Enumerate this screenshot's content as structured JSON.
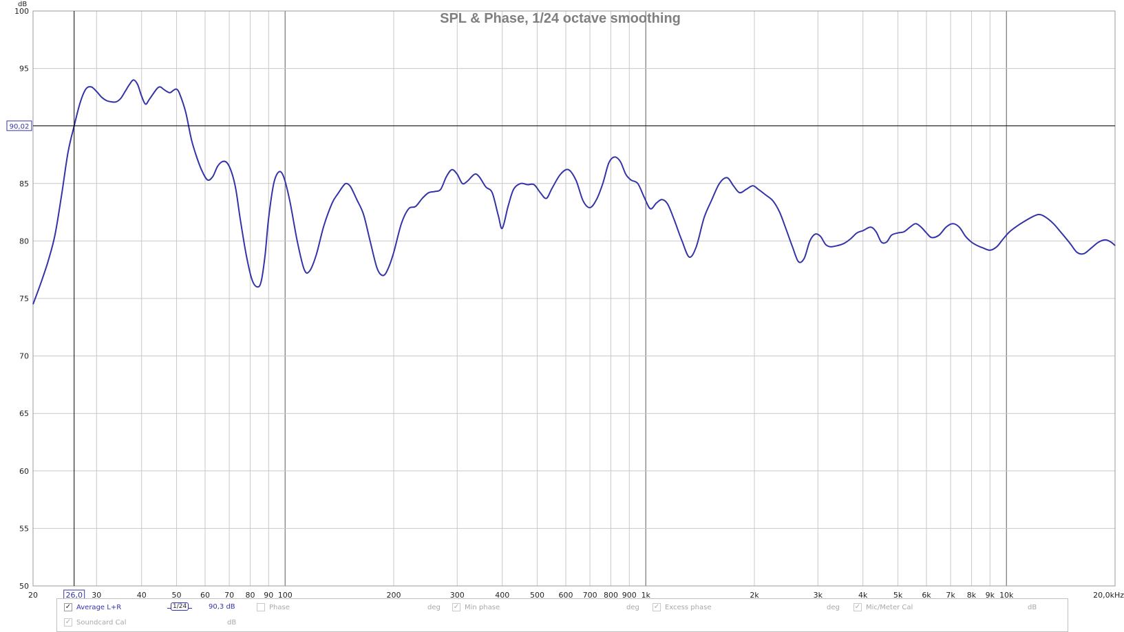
{
  "chart_data": {
    "type": "line",
    "title": "SPL & Phase, 1/24 octave smoothing",
    "ylabel": "dB",
    "x_scale": "log",
    "xlim": [
      20,
      20000
    ],
    "ylim": [
      50,
      100
    ],
    "grid": true,
    "y_ticks": [
      50,
      55,
      60,
      65,
      70,
      75,
      80,
      85,
      90,
      95,
      100
    ],
    "x_ticks": [
      {
        "v": 20,
        "label": "20"
      },
      {
        "v": 30,
        "label": "30"
      },
      {
        "v": 40,
        "label": "40"
      },
      {
        "v": 50,
        "label": "50"
      },
      {
        "v": 60,
        "label": "60"
      },
      {
        "v": 70,
        "label": "70"
      },
      {
        "v": 80,
        "label": "80"
      },
      {
        "v": 90,
        "label": "90"
      },
      {
        "v": 100,
        "label": "100"
      },
      {
        "v": 200,
        "label": "200"
      },
      {
        "v": 300,
        "label": "300"
      },
      {
        "v": 400,
        "label": "400"
      },
      {
        "v": 500,
        "label": "500"
      },
      {
        "v": 600,
        "label": "600"
      },
      {
        "v": 700,
        "label": "700"
      },
      {
        "v": 800,
        "label": "800"
      },
      {
        "v": 900,
        "label": "900"
      },
      {
        "v": 1000,
        "label": "1k"
      },
      {
        "v": 2000,
        "label": "2k"
      },
      {
        "v": 3000,
        "label": "3k"
      },
      {
        "v": 4000,
        "label": "4k"
      },
      {
        "v": 5000,
        "label": "5k"
      },
      {
        "v": 6000,
        "label": "6k"
      },
      {
        "v": 7000,
        "label": "7k"
      },
      {
        "v": 8000,
        "label": "8k"
      },
      {
        "v": 9000,
        "label": "9k"
      },
      {
        "v": 10000,
        "label": "10k"
      },
      {
        "v": 20000,
        "label": "20,0kHz"
      }
    ],
    "cursor": {
      "x": 26.0,
      "x_label": "26,0",
      "y": 90.02,
      "y_label": "90,02"
    },
    "series": [
      {
        "name": "Average L+R",
        "color": "#3333a8",
        "points": [
          [
            20,
            74.5
          ],
          [
            21,
            76.3
          ],
          [
            22,
            78.2
          ],
          [
            23,
            80.5
          ],
          [
            24,
            84.0
          ],
          [
            25,
            87.7
          ],
          [
            26,
            90.0
          ],
          [
            27,
            92.0
          ],
          [
            28,
            93.2
          ],
          [
            29,
            93.4
          ],
          [
            30,
            93.0
          ],
          [
            31,
            92.5
          ],
          [
            32,
            92.2
          ],
          [
            33,
            92.1
          ],
          [
            34,
            92.1
          ],
          [
            35,
            92.4
          ],
          [
            36,
            93.0
          ],
          [
            37,
            93.6
          ],
          [
            38,
            94.0
          ],
          [
            39,
            93.6
          ],
          [
            40,
            92.6
          ],
          [
            41,
            91.9
          ],
          [
            42,
            92.3
          ],
          [
            44,
            93.2
          ],
          [
            45,
            93.4
          ],
          [
            46,
            93.2
          ],
          [
            47,
            93.0
          ],
          [
            48,
            92.9
          ],
          [
            49,
            93.1
          ],
          [
            50,
            93.2
          ],
          [
            51,
            92.8
          ],
          [
            53,
            91.2
          ],
          [
            55,
            88.8
          ],
          [
            57,
            87.2
          ],
          [
            59,
            86.0
          ],
          [
            61,
            85.3
          ],
          [
            63,
            85.6
          ],
          [
            65,
            86.5
          ],
          [
            67,
            86.9
          ],
          [
            69,
            86.8
          ],
          [
            71,
            86.0
          ],
          [
            73,
            84.5
          ],
          [
            75,
            82.0
          ],
          [
            78,
            78.8
          ],
          [
            81,
            76.6
          ],
          [
            84,
            76.0
          ],
          [
            86,
            76.6
          ],
          [
            88,
            78.8
          ],
          [
            90,
            82.0
          ],
          [
            93,
            85.0
          ],
          [
            96,
            86.0
          ],
          [
            99,
            85.6
          ],
          [
            103,
            83.5
          ],
          [
            108,
            80.0
          ],
          [
            113,
            77.5
          ],
          [
            117,
            77.4
          ],
          [
            122,
            78.8
          ],
          [
            128,
            81.3
          ],
          [
            135,
            83.3
          ],
          [
            140,
            84.1
          ],
          [
            145,
            84.8
          ],
          [
            148,
            85.0
          ],
          [
            152,
            84.7
          ],
          [
            158,
            83.6
          ],
          [
            165,
            82.3
          ],
          [
            172,
            80.0
          ],
          [
            180,
            77.6
          ],
          [
            187,
            77.0
          ],
          [
            193,
            77.6
          ],
          [
            200,
            79.0
          ],
          [
            210,
            81.5
          ],
          [
            220,
            82.8
          ],
          [
            230,
            83.0
          ],
          [
            240,
            83.7
          ],
          [
            250,
            84.2
          ],
          [
            260,
            84.3
          ],
          [
            270,
            84.5
          ],
          [
            280,
            85.6
          ],
          [
            290,
            86.2
          ],
          [
            300,
            85.8
          ],
          [
            310,
            85.0
          ],
          [
            320,
            85.2
          ],
          [
            335,
            85.8
          ],
          [
            345,
            85.6
          ],
          [
            360,
            84.7
          ],
          [
            375,
            84.2
          ],
          [
            390,
            82.2
          ],
          [
            400,
            81.1
          ],
          [
            415,
            83.0
          ],
          [
            430,
            84.5
          ],
          [
            450,
            85.0
          ],
          [
            470,
            84.9
          ],
          [
            490,
            84.9
          ],
          [
            510,
            84.2
          ],
          [
            530,
            83.7
          ],
          [
            550,
            84.6
          ],
          [
            580,
            85.8
          ],
          [
            610,
            86.2
          ],
          [
            640,
            85.3
          ],
          [
            670,
            83.5
          ],
          [
            700,
            82.9
          ],
          [
            730,
            83.6
          ],
          [
            760,
            85.0
          ],
          [
            790,
            86.8
          ],
          [
            820,
            87.3
          ],
          [
            850,
            86.9
          ],
          [
            880,
            85.8
          ],
          [
            910,
            85.3
          ],
          [
            950,
            85.0
          ],
          [
            990,
            83.8
          ],
          [
            1030,
            82.8
          ],
          [
            1070,
            83.3
          ],
          [
            1110,
            83.6
          ],
          [
            1150,
            83.2
          ],
          [
            1200,
            81.8
          ],
          [
            1260,
            80.0
          ],
          [
            1320,
            78.6
          ],
          [
            1380,
            79.5
          ],
          [
            1450,
            82.0
          ],
          [
            1520,
            83.5
          ],
          [
            1600,
            85.0
          ],
          [
            1680,
            85.5
          ],
          [
            1750,
            84.8
          ],
          [
            1820,
            84.2
          ],
          [
            1900,
            84.5
          ],
          [
            1980,
            84.8
          ],
          [
            2050,
            84.5
          ],
          [
            2150,
            84.0
          ],
          [
            2250,
            83.5
          ],
          [
            2350,
            82.5
          ],
          [
            2450,
            81.0
          ],
          [
            2550,
            79.5
          ],
          [
            2650,
            78.2
          ],
          [
            2750,
            78.5
          ],
          [
            2850,
            80.0
          ],
          [
            2950,
            80.6
          ],
          [
            3050,
            80.4
          ],
          [
            3150,
            79.7
          ],
          [
            3250,
            79.5
          ],
          [
            3400,
            79.6
          ],
          [
            3550,
            79.8
          ],
          [
            3700,
            80.2
          ],
          [
            3850,
            80.7
          ],
          [
            4000,
            80.9
          ],
          [
            4200,
            81.2
          ],
          [
            4350,
            80.8
          ],
          [
            4500,
            79.9
          ],
          [
            4650,
            79.9
          ],
          [
            4800,
            80.5
          ],
          [
            5000,
            80.7
          ],
          [
            5200,
            80.8
          ],
          [
            5400,
            81.2
          ],
          [
            5600,
            81.5
          ],
          [
            5800,
            81.2
          ],
          [
            6000,
            80.7
          ],
          [
            6200,
            80.3
          ],
          [
            6500,
            80.5
          ],
          [
            6800,
            81.2
          ],
          [
            7100,
            81.5
          ],
          [
            7400,
            81.2
          ],
          [
            7700,
            80.4
          ],
          [
            8000,
            79.9
          ],
          [
            8300,
            79.6
          ],
          [
            8600,
            79.4
          ],
          [
            9000,
            79.2
          ],
          [
            9400,
            79.5
          ],
          [
            9800,
            80.2
          ],
          [
            10200,
            80.8
          ],
          [
            10700,
            81.3
          ],
          [
            11200,
            81.7
          ],
          [
            11800,
            82.1
          ],
          [
            12300,
            82.3
          ],
          [
            12800,
            82.1
          ],
          [
            13500,
            81.5
          ],
          [
            14200,
            80.7
          ],
          [
            15000,
            79.8
          ],
          [
            15700,
            79.0
          ],
          [
            16400,
            78.9
          ],
          [
            17200,
            79.4
          ],
          [
            18000,
            79.9
          ],
          [
            18800,
            80.1
          ],
          [
            19500,
            79.9
          ],
          [
            20000,
            79.6
          ]
        ]
      }
    ]
  },
  "legend": {
    "rows": [
      [
        {
          "label": "Average L+R",
          "checked": true,
          "enabled": true,
          "smoothing": "1/24",
          "value": "90,3 dB"
        },
        {
          "label": "Phase",
          "checked": false,
          "enabled": false,
          "unit": "deg"
        },
        {
          "label": "Min phase",
          "checked": true,
          "enabled": false,
          "unit": "deg"
        },
        {
          "label": "Excess phase",
          "checked": true,
          "enabled": false,
          "unit": "deg"
        },
        {
          "label": "Mic/Meter Cal",
          "checked": true,
          "enabled": false,
          "unit": "dB"
        }
      ],
      [
        {
          "label": "Soundcard Cal",
          "checked": true,
          "enabled": false,
          "unit": "dB"
        }
      ]
    ]
  },
  "colors": {
    "trace": "#3333a8",
    "grid": "#c8c8c8",
    "grid_decade": "#7a7a7a",
    "title": "#7f7f7f",
    "cursor": "#000000"
  }
}
